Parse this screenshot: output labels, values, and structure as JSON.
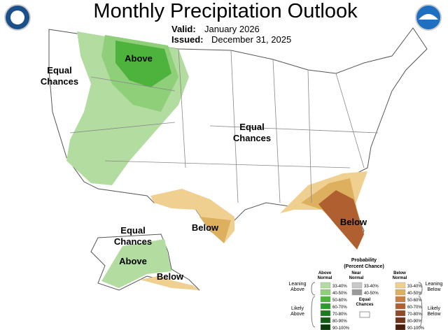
{
  "header": {
    "title": "Monthly Precipitation Outlook",
    "valid_label": "Valid:",
    "valid": "January 2026",
    "issued_label": "Issued:",
    "issued": "December 31, 2025"
  },
  "map_labels": [
    {
      "lines": [
        "Equal",
        "Chances"
      ]
    },
    {
      "lines": [
        "Above"
      ]
    },
    {
      "lines": [
        "Equal",
        "Chances"
      ]
    },
    {
      "lines": [
        "Below"
      ]
    },
    {
      "lines": [
        "Below"
      ]
    },
    {
      "lines": [
        "Equal",
        "Chances"
      ]
    },
    {
      "lines": [
        "Above"
      ]
    },
    {
      "lines": [
        "Below"
      ]
    }
  ],
  "legend": {
    "title": [
      "Probability",
      "(Percent Chance)"
    ],
    "above": {
      "heading": [
        "Above",
        "Normal"
      ],
      "items": [
        {
          "label": "33-40%",
          "color": "#b3dca0"
        },
        {
          "label": "40-50%",
          "color": "#8fcf7a"
        },
        {
          "label": "50-60%",
          "color": "#4db33d"
        },
        {
          "label": "60-70%",
          "color": "#2e9a2e"
        },
        {
          "label": "70-80%",
          "color": "#1f7a1f"
        },
        {
          "label": "80-90%",
          "color": "#145c14"
        },
        {
          "label": "90-100%",
          "color": "#0a3d0a"
        }
      ]
    },
    "near": {
      "heading": [
        "Near",
        "Normal"
      ],
      "items": [
        {
          "label": "33-40%",
          "color": "#c8c8c8"
        },
        {
          "label": "40-50%",
          "color": "#9a9a9a"
        }
      ]
    },
    "below": {
      "heading": [
        "Below",
        "Normal"
      ],
      "items": [
        {
          "label": "33-40%",
          "color": "#f0d090"
        },
        {
          "label": "40-50%",
          "color": "#ddb060"
        },
        {
          "label": "50-60%",
          "color": "#c88040"
        },
        {
          "label": "60-70%",
          "color": "#b06030"
        },
        {
          "label": "70-80%",
          "color": "#904a28"
        },
        {
          "label": "80-90%",
          "color": "#703418"
        },
        {
          "label": "90-100%",
          "color": "#4a200c"
        }
      ]
    },
    "equal": [
      "Equal",
      "Chances"
    ],
    "leaning_above": [
      "Leaning",
      "Above"
    ],
    "likely_above": [
      "Likely",
      "Above"
    ],
    "leaning_below": [
      "Leaning",
      "Below"
    ],
    "likely_below": [
      "Likely",
      "Below"
    ]
  }
}
